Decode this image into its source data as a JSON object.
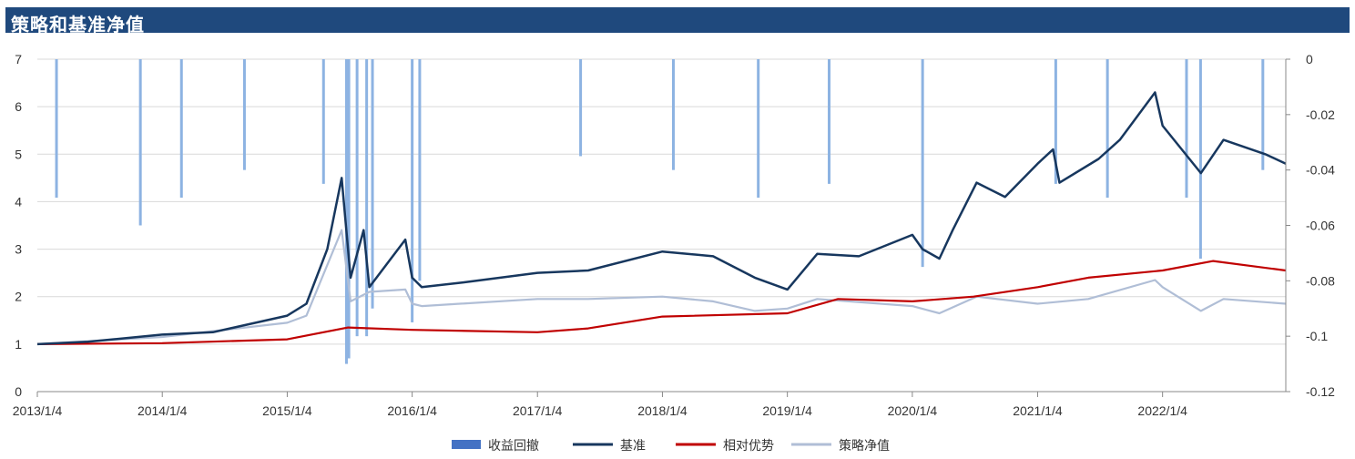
{
  "header": {
    "title": "策略和基准净值"
  },
  "chart_data": {
    "type": "line",
    "title": "策略和基准净值",
    "x_range": [
      "2013/1/4",
      "2022/12/30"
    ],
    "x_ticks": [
      "2013/1/4",
      "2014/1/4",
      "2015/1/4",
      "2016/1/4",
      "2017/1/4",
      "2018/1/4",
      "2019/1/4",
      "2020/1/4",
      "2021/1/4",
      "2022/1/4"
    ],
    "y_left": {
      "range": [
        0,
        7
      ],
      "ticks": [
        "0",
        "1",
        "2",
        "3",
        "4",
        "5",
        "6",
        "7"
      ]
    },
    "y_right": {
      "range": [
        -0.12,
        0
      ],
      "ticks": [
        "0",
        "-0.02",
        "-0.04",
        "-0.06",
        "-0.08",
        "-0.1",
        "-0.12"
      ]
    },
    "grid": true,
    "legend_position": "bottom",
    "legend": [
      "收益回撤",
      "基准",
      "相对优势",
      "策略净值"
    ],
    "series": [
      {
        "name": "基准",
        "color": "#17375e",
        "axis": "left",
        "x": [
          "2013/1/4",
          "2013/6/1",
          "2014/1/4",
          "2014/6/1",
          "2015/1/4",
          "2015/3/1",
          "2015/5/1",
          "2015/6/12",
          "2015/7/8",
          "2015/8/15",
          "2015/9/1",
          "2015/12/15",
          "2016/1/4",
          "2016/2/1",
          "2016/6/1",
          "2017/1/4",
          "2017/6/1",
          "2018/1/4",
          "2018/6/1",
          "2018/10/1",
          "2019/1/4",
          "2019/4/1",
          "2019/8/1",
          "2020/1/4",
          "2020/2/3",
          "2020/3/23",
          "2020/5/1",
          "2020/7/10",
          "2020/10/1",
          "2021/1/4",
          "2021/2/18",
          "2021/3/9",
          "2021/7/1",
          "2021/9/1",
          "2021/12/13",
          "2022/1/4",
          "2022/4/26",
          "2022/7/1",
          "2022/10/31",
          "2022/12/30"
        ],
        "values": [
          1.0,
          1.05,
          1.2,
          1.25,
          1.6,
          1.85,
          3.0,
          4.5,
          2.4,
          3.4,
          2.2,
          3.2,
          2.4,
          2.2,
          2.3,
          2.5,
          2.55,
          2.95,
          2.85,
          2.4,
          2.15,
          2.9,
          2.85,
          3.3,
          3.0,
          2.8,
          3.4,
          4.4,
          4.1,
          4.8,
          5.1,
          4.4,
          4.9,
          5.3,
          6.3,
          5.6,
          4.6,
          5.3,
          5.0,
          4.8
        ]
      },
      {
        "name": "相对优势",
        "color": "#c00000",
        "axis": "left",
        "x": [
          "2013/1/4",
          "2014/1/4",
          "2015/1/4",
          "2015/7/1",
          "2016/1/4",
          "2017/1/4",
          "2017/6/1",
          "2018/1/4",
          "2019/1/4",
          "2019/6/1",
          "2020/1/4",
          "2020/7/1",
          "2021/1/4",
          "2021/6/1",
          "2022/1/4",
          "2022/6/1",
          "2022/12/30"
        ],
        "values": [
          1.0,
          1.02,
          1.1,
          1.35,
          1.3,
          1.25,
          1.33,
          1.58,
          1.65,
          1.95,
          1.9,
          2.0,
          2.2,
          2.4,
          2.55,
          2.75,
          2.55
        ]
      },
      {
        "name": "策略净值",
        "color": "#b0bed6",
        "axis": "left",
        "x": [
          "2013/1/4",
          "2014/1/4",
          "2015/1/4",
          "2015/3/1",
          "2015/6/12",
          "2015/7/8",
          "2015/9/1",
          "2015/12/15",
          "2016/1/4",
          "2016/2/1",
          "2017/1/4",
          "2017/6/1",
          "2018/1/4",
          "2018/6/1",
          "2018/10/1",
          "2019/1/4",
          "2019/4/1",
          "2020/1/4",
          "2020/3/23",
          "2020/7/10",
          "2021/1/4",
          "2021/6/1",
          "2021/12/13",
          "2022/1/4",
          "2022/4/26",
          "2022/7/1",
          "2022/12/30"
        ],
        "values": [
          1.0,
          1.15,
          1.45,
          1.6,
          3.4,
          1.9,
          2.1,
          2.15,
          1.85,
          1.8,
          1.95,
          1.95,
          2.0,
          1.9,
          1.7,
          1.75,
          1.95,
          1.8,
          1.65,
          2.0,
          1.85,
          1.95,
          2.35,
          2.2,
          1.7,
          1.95,
          1.85
        ]
      },
      {
        "name": "收益回撤",
        "color": "#8db3e2",
        "axis": "right",
        "type": "bar",
        "x": [
          "2013/3/1",
          "2013/11/1",
          "2014/3/1",
          "2014/9/1",
          "2015/4/20",
          "2015/6/26",
          "2015/7/3",
          "2015/7/27",
          "2015/8/24",
          "2015/9/10",
          "2016/1/4",
          "2016/1/26",
          "2017/5/10",
          "2018/2/5",
          "2018/10/11",
          "2019/5/6",
          "2020/2/3",
          "2021/2/26",
          "2021/7/27",
          "2022/3/15",
          "2022/4/25",
          "2022/10/24"
        ],
        "values": [
          -0.05,
          -0.06,
          -0.05,
          -0.04,
          -0.045,
          -0.11,
          -0.108,
          -0.1,
          -0.1,
          -0.09,
          -0.095,
          -0.08,
          -0.035,
          -0.04,
          -0.05,
          -0.045,
          -0.075,
          -0.045,
          -0.05,
          -0.05,
          -0.072,
          -0.04
        ]
      }
    ]
  }
}
